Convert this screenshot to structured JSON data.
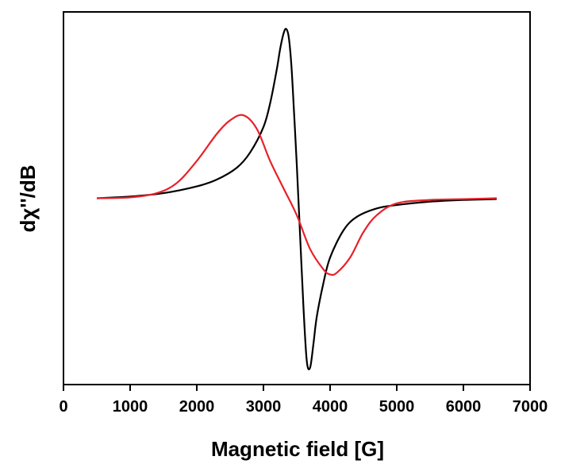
{
  "chart_data": {
    "type": "line",
    "title": "",
    "xlabel": "Magnetic field [G]",
    "ylabel": "dχ''/dB",
    "xlim": [
      0,
      7000
    ],
    "ylim": [
      -1.1,
      1.1
    ],
    "xticks": [
      0,
      1000,
      2000,
      3000,
      4000,
      5000,
      6000,
      7000
    ],
    "yticks_shown": false,
    "grid": false,
    "legend": "none",
    "series": [
      {
        "color": "#000000",
        "x": [
          500,
          1000,
          1500,
          2000,
          2300,
          2600,
          2800,
          3000,
          3100,
          3200,
          3250,
          3300,
          3340,
          3380,
          3420,
          3460,
          3500,
          3550,
          3600,
          3650,
          3700,
          3750,
          3800,
          3900,
          4000,
          4200,
          4400,
          4700,
          5000,
          5500,
          6000,
          6500
        ],
        "y": [
          0.0,
          0.01,
          0.03,
          0.07,
          0.11,
          0.18,
          0.27,
          0.42,
          0.56,
          0.76,
          0.88,
          0.97,
          1.0,
          0.95,
          0.78,
          0.5,
          0.2,
          -0.22,
          -0.64,
          -0.96,
          -1.0,
          -0.86,
          -0.7,
          -0.5,
          -0.35,
          -0.19,
          -0.11,
          -0.06,
          -0.04,
          -0.02,
          -0.01,
          -0.005
        ],
        "annotation": ""
      },
      {
        "color": "#e8212a",
        "x": [
          500,
          1000,
          1400,
          1700,
          2000,
          2300,
          2500,
          2700,
          2900,
          3100,
          3300,
          3500,
          3700,
          3900,
          4000,
          4100,
          4300,
          4500,
          4700,
          5000,
          5500,
          6000,
          6500
        ],
        "y": [
          0.0,
          0.005,
          0.03,
          0.09,
          0.22,
          0.38,
          0.46,
          0.49,
          0.41,
          0.22,
          0.06,
          -0.1,
          -0.3,
          -0.42,
          -0.45,
          -0.44,
          -0.35,
          -0.2,
          -0.1,
          -0.03,
          -0.01,
          -0.005,
          0.0
        ],
        "annotation": ""
      }
    ]
  }
}
